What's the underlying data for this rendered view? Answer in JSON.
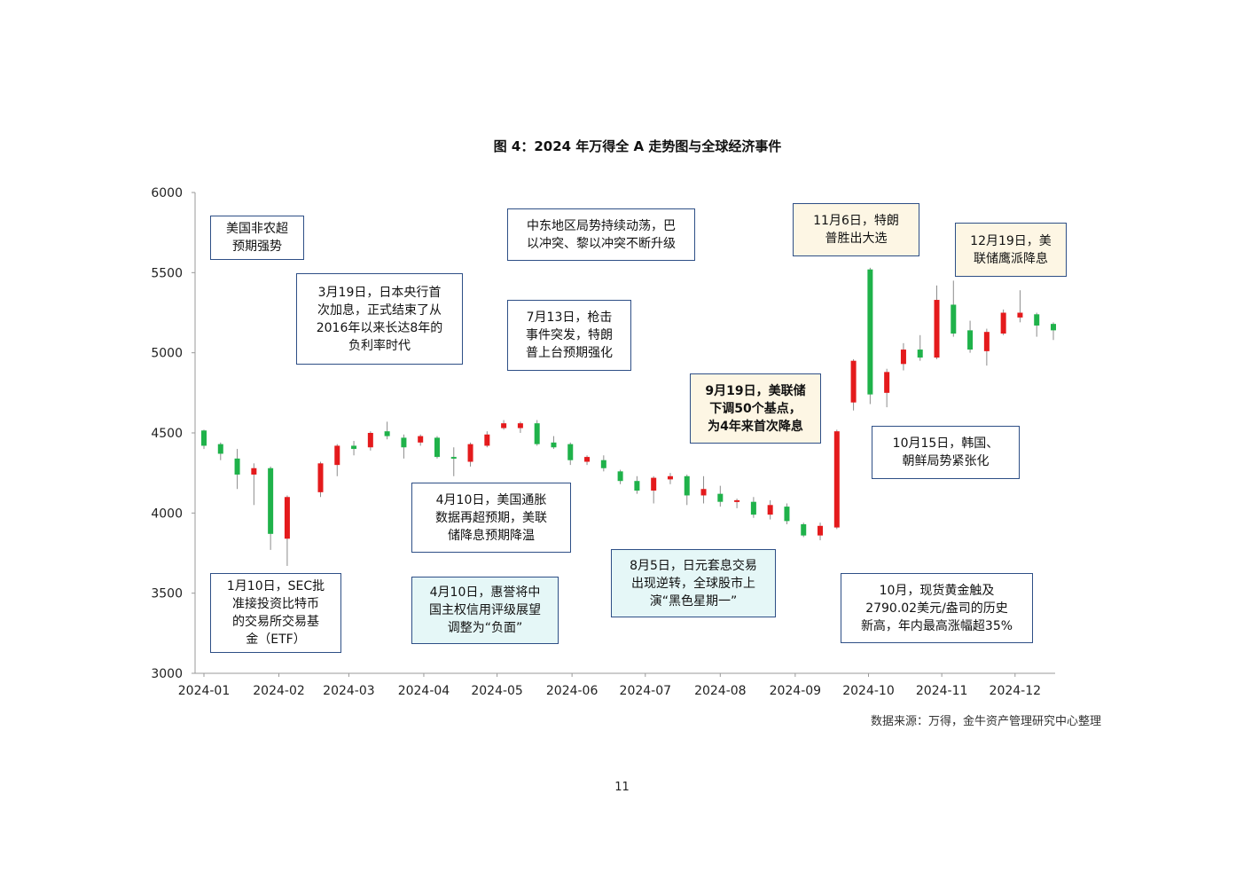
{
  "page": {
    "title": "图 4：2024 年万得全 A 走势图与全球经济事件",
    "source": "数据来源：万得，金牛资产管理研究中心整理",
    "page_number": "11"
  },
  "colors": {
    "up": "#e41a1c",
    "down": "#1fb24a",
    "wick": "#8c8c8c",
    "box_border": "#2e4f86",
    "box_cyan": "#e5f7f7",
    "box_cream": "#fdf6e4"
  },
  "annotations": [
    {
      "id": "nfp",
      "text": "美国非农超\n预期强势",
      "style": "plain"
    },
    {
      "id": "boj",
      "text": "3月19日，日本央行首\n次加息，正式结束了从\n2016年以来长达8年的\n负利率时代",
      "style": "plain"
    },
    {
      "id": "mideast",
      "text": "中东地区局势持续动荡，巴\n以冲突、黎以冲突不断升级",
      "style": "plain"
    },
    {
      "id": "shooting",
      "text": "7月13日，枪击\n事件突发，特朗\n普上台预期强化",
      "style": "plain"
    },
    {
      "id": "trump",
      "text": "11月6日，特朗\n普胜出大选",
      "style": "cream"
    },
    {
      "id": "fed-dec",
      "text": "12月19日，美\n联储鹰派降息",
      "style": "cream"
    },
    {
      "id": "fed-sep",
      "text": "9月19日，美联储\n下调50个基点，\n为4年来首次降息",
      "style": "cream-bold"
    },
    {
      "id": "korea",
      "text": "10月15日，韩国、\n朝鲜局势紧张化",
      "style": "plain"
    },
    {
      "id": "etf",
      "text": "1月10日，SEC批\n准接投资比特币\n的交易所交易基\n金（ETF）",
      "style": "plain"
    },
    {
      "id": "cpi",
      "text": "4月10日，美国通胀\n数据再超预期，美联\n储降息预期降温",
      "style": "plain"
    },
    {
      "id": "fitch",
      "text": "4月10日，惠誉将中\n国主权信用评级展望\n调整为“负面”",
      "style": "cyan"
    },
    {
      "id": "yen",
      "text": "8月5日，日元套息交易\n出现逆转，全球股市上\n演“黑色星期一”",
      "style": "cyan"
    },
    {
      "id": "gold",
      "text": "10月，现货黄金触及\n2790.02美元/盎司的历史\n新高，年内最高涨幅超35%",
      "style": "plain"
    }
  ],
  "chart_data": {
    "type": "candlestick",
    "title": "图 4：2024 年万得全 A 走势图与全球经济事件",
    "xlabel": "",
    "ylabel": "",
    "ylim": [
      3000,
      6000
    ],
    "yticks": [
      3000,
      3500,
      4000,
      4500,
      5000,
      5500,
      6000
    ],
    "xticks": [
      "2024-01",
      "2024-02",
      "2024-03",
      "2024-04",
      "2024-05",
      "2024-06",
      "2024-07",
      "2024-08",
      "2024-09",
      "2024-10",
      "2024-11",
      "2024-12"
    ],
    "week_of_xtick": [
      0,
      4.5,
      8.7,
      13.2,
      17.6,
      22.1,
      26.5,
      31,
      35.5,
      39.9,
      44.3,
      48.7
    ],
    "grid": false,
    "candles": [
      {
        "week": 0,
        "open": 4515,
        "close": 4420,
        "high": 4520,
        "low": 4400
      },
      {
        "week": 1,
        "open": 4430,
        "close": 4370,
        "high": 4440,
        "low": 4330
      },
      {
        "week": 2,
        "open": 4340,
        "close": 4240,
        "high": 4400,
        "low": 4150
      },
      {
        "week": 3,
        "open": 4240,
        "close": 4280,
        "high": 4310,
        "low": 4050
      },
      {
        "week": 4,
        "open": 4280,
        "close": 3870,
        "high": 4290,
        "low": 3770
      },
      {
        "week": 5,
        "open": 3840,
        "close": 4100,
        "high": 4110,
        "low": 3670
      },
      {
        "week": 7,
        "open": 4130,
        "close": 4310,
        "high": 4320,
        "low": 4100
      },
      {
        "week": 8,
        "open": 4300,
        "close": 4420,
        "high": 4430,
        "low": 4230
      },
      {
        "week": 9,
        "open": 4420,
        "close": 4400,
        "high": 4450,
        "low": 4360
      },
      {
        "week": 10,
        "open": 4410,
        "close": 4500,
        "high": 4510,
        "low": 4390
      },
      {
        "week": 11,
        "open": 4510,
        "close": 4480,
        "high": 4570,
        "low": 4460
      },
      {
        "week": 12,
        "open": 4470,
        "close": 4410,
        "high": 4490,
        "low": 4340
      },
      {
        "week": 13,
        "open": 4440,
        "close": 4480,
        "high": 4490,
        "low": 4420
      },
      {
        "week": 14,
        "open": 4470,
        "close": 4350,
        "high": 4480,
        "low": 4340
      },
      {
        "week": 15,
        "open": 4350,
        "close": 4340,
        "high": 4410,
        "low": 4230
      },
      {
        "week": 16,
        "open": 4320,
        "close": 4430,
        "high": 4440,
        "low": 4290
      },
      {
        "week": 17,
        "open": 4420,
        "close": 4490,
        "high": 4510,
        "low": 4410
      },
      {
        "week": 18,
        "open": 4530,
        "close": 4560,
        "high": 4580,
        "low": 4520
      },
      {
        "week": 19,
        "open": 4530,
        "close": 4560,
        "high": 4570,
        "low": 4500
      },
      {
        "week": 20,
        "open": 4560,
        "close": 4430,
        "high": 4580,
        "low": 4420
      },
      {
        "week": 21,
        "open": 4440,
        "close": 4410,
        "high": 4480,
        "low": 4400
      },
      {
        "week": 22,
        "open": 4430,
        "close": 4330,
        "high": 4440,
        "low": 4300
      },
      {
        "week": 23,
        "open": 4320,
        "close": 4350,
        "high": 4360,
        "low": 4300
      },
      {
        "week": 24,
        "open": 4330,
        "close": 4280,
        "high": 4360,
        "low": 4260
      },
      {
        "week": 25,
        "open": 4260,
        "close": 4200,
        "high": 4270,
        "low": 4180
      },
      {
        "week": 26,
        "open": 4200,
        "close": 4140,
        "high": 4230,
        "low": 4120
      },
      {
        "week": 27,
        "open": 4140,
        "close": 4220,
        "high": 4230,
        "low": 4060
      },
      {
        "week": 28,
        "open": 4210,
        "close": 4230,
        "high": 4250,
        "low": 4180
      },
      {
        "week": 29,
        "open": 4230,
        "close": 4110,
        "high": 4240,
        "low": 4050
      },
      {
        "week": 30,
        "open": 4110,
        "close": 4150,
        "high": 4230,
        "low": 4060
      },
      {
        "week": 31,
        "open": 4120,
        "close": 4070,
        "high": 4170,
        "low": 4040
      },
      {
        "week": 32,
        "open": 4070,
        "close": 4080,
        "high": 4090,
        "low": 4030
      },
      {
        "week": 33,
        "open": 4070,
        "close": 3990,
        "high": 4100,
        "low": 3970
      },
      {
        "week": 34,
        "open": 3990,
        "close": 4050,
        "high": 4080,
        "low": 3960
      },
      {
        "week": 35,
        "open": 4040,
        "close": 3950,
        "high": 4060,
        "low": 3930
      },
      {
        "week": 36,
        "open": 3930,
        "close": 3860,
        "high": 3940,
        "low": 3850
      },
      {
        "week": 37,
        "open": 3860,
        "close": 3920,
        "high": 3940,
        "low": 3830
      },
      {
        "week": 38,
        "open": 3910,
        "close": 4510,
        "high": 4520,
        "low": 3900
      },
      {
        "week": 39,
        "open": 4690,
        "close": 4950,
        "high": 4960,
        "low": 4640
      },
      {
        "week": 40,
        "open": 5520,
        "close": 4740,
        "high": 5530,
        "low": 4680
      },
      {
        "week": 41,
        "open": 4750,
        "close": 4880,
        "high": 4900,
        "low": 4660
      },
      {
        "week": 42,
        "open": 4930,
        "close": 5020,
        "high": 5060,
        "low": 4890
      },
      {
        "week": 43,
        "open": 5020,
        "close": 4970,
        "high": 5110,
        "low": 4950
      },
      {
        "week": 44,
        "open": 4970,
        "close": 5330,
        "high": 5420,
        "low": 4960
      },
      {
        "week": 45,
        "open": 5300,
        "close": 5120,
        "high": 5450,
        "low": 5100
      },
      {
        "week": 46,
        "open": 5140,
        "close": 5020,
        "high": 5200,
        "low": 5000
      },
      {
        "week": 47,
        "open": 5010,
        "close": 5130,
        "high": 5150,
        "low": 4920
      },
      {
        "week": 48,
        "open": 5120,
        "close": 5250,
        "high": 5270,
        "low": 5110
      },
      {
        "week": 49,
        "open": 5220,
        "close": 5250,
        "high": 5390,
        "low": 5190
      },
      {
        "week": 50,
        "open": 5240,
        "close": 5170,
        "high": 5250,
        "low": 5100
      },
      {
        "week": 51,
        "open": 5180,
        "close": 5140,
        "high": 5190,
        "low": 5080
      }
    ]
  }
}
